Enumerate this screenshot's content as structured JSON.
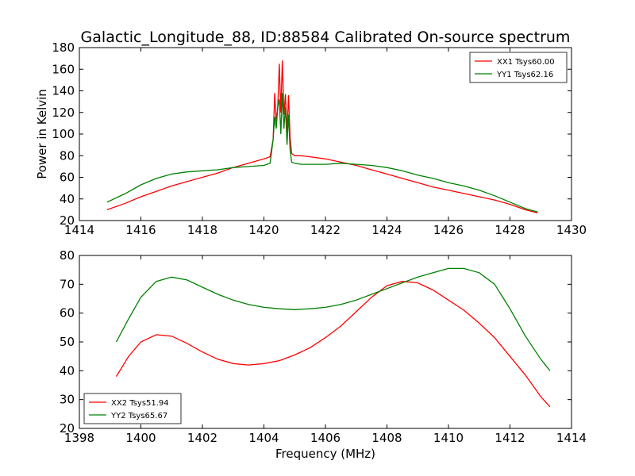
{
  "title": "Galactic_Longitude_88, ID:88584 Calibrated On-source spectrum",
  "chart_data": [
    {
      "type": "line",
      "title": "Galactic_Longitude_88, ID:88584 Calibrated On-source spectrum",
      "xlabel": "",
      "ylabel": "Power in Kelvin",
      "xlim": [
        1414,
        1430
      ],
      "ylim": [
        20,
        180
      ],
      "xticks": [
        1414,
        1416,
        1418,
        1420,
        1422,
        1424,
        1426,
        1428,
        1430
      ],
      "yticks": [
        20,
        40,
        60,
        80,
        100,
        120,
        140,
        160,
        180
      ],
      "grid": false,
      "legend_position": "top-right",
      "series": [
        {
          "name": "XX1 Tsys60.00",
          "color": "#ff0000",
          "x": [
            1414.9,
            1415.5,
            1416.0,
            1416.5,
            1417.0,
            1417.5,
            1418.0,
            1418.5,
            1419.0,
            1419.5,
            1420.0,
            1420.2,
            1420.3,
            1420.35,
            1420.4,
            1420.45,
            1420.5,
            1420.55,
            1420.6,
            1420.65,
            1420.7,
            1420.75,
            1420.8,
            1420.85,
            1420.9,
            1421.0,
            1421.2,
            1421.5,
            1422.0,
            1422.5,
            1423.0,
            1423.5,
            1424.0,
            1424.5,
            1425.0,
            1425.5,
            1426.0,
            1426.5,
            1427.0,
            1427.5,
            1428.0,
            1428.5,
            1428.9
          ],
          "y": [
            30,
            36,
            42,
            47,
            52,
            56,
            60,
            64,
            69,
            73,
            77,
            79,
            95,
            138,
            112,
            125,
            165,
            120,
            168,
            118,
            137,
            102,
            136,
            98,
            82,
            80,
            80,
            79,
            77,
            74,
            71,
            67,
            63,
            59,
            55,
            51,
            48,
            45,
            42,
            39,
            35,
            30,
            27
          ]
        },
        {
          "name": "YY1 Tsys62.16",
          "color": "#008000",
          "x": [
            1414.9,
            1415.5,
            1416.0,
            1416.5,
            1417.0,
            1417.5,
            1418.0,
            1418.5,
            1419.0,
            1419.5,
            1420.0,
            1420.2,
            1420.3,
            1420.35,
            1420.4,
            1420.45,
            1420.5,
            1420.55,
            1420.6,
            1420.65,
            1420.7,
            1420.75,
            1420.8,
            1420.85,
            1420.9,
            1421.0,
            1421.2,
            1421.5,
            1422.0,
            1422.5,
            1423.0,
            1423.5,
            1424.0,
            1424.5,
            1425.0,
            1425.5,
            1426.0,
            1426.5,
            1427.0,
            1427.5,
            1428.0,
            1428.5,
            1428.9
          ],
          "y": [
            37,
            45,
            53,
            59,
            63,
            65,
            66,
            67,
            69,
            70,
            71,
            73,
            95,
            116,
            105,
            125,
            132,
            100,
            138,
            105,
            125,
            90,
            118,
            86,
            74,
            73,
            72,
            72,
            72,
            73,
            72,
            71,
            69,
            66,
            62,
            59,
            55,
            52,
            48,
            43,
            37,
            31,
            28
          ]
        }
      ]
    },
    {
      "type": "line",
      "title": "",
      "xlabel": "Frequency (MHz)",
      "ylabel": "",
      "xlim": [
        1398,
        1414
      ],
      "ylim": [
        20,
        80
      ],
      "xticks": [
        1398,
        1400,
        1402,
        1404,
        1406,
        1408,
        1410,
        1412,
        1414
      ],
      "yticks": [
        20,
        30,
        40,
        50,
        60,
        70,
        80
      ],
      "grid": false,
      "legend_position": "bottom-left",
      "series": [
        {
          "name": "XX2 Tsys51.94",
          "color": "#ff0000",
          "x": [
            1399.2,
            1399.6,
            1400.0,
            1400.5,
            1401.0,
            1401.5,
            1402.0,
            1402.5,
            1403.0,
            1403.5,
            1404.0,
            1404.5,
            1405.0,
            1405.5,
            1406.0,
            1406.5,
            1407.0,
            1407.5,
            1408.0,
            1408.5,
            1409.0,
            1409.5,
            1410.0,
            1410.5,
            1411.0,
            1411.5,
            1412.0,
            1412.5,
            1413.0,
            1413.3
          ],
          "y": [
            38,
            45,
            50,
            52.5,
            52,
            49.5,
            46.5,
            44,
            42.5,
            42,
            42.5,
            43.5,
            45.5,
            48,
            51.5,
            55.5,
            60.5,
            65.5,
            69.5,
            71,
            70.5,
            68,
            64.5,
            61,
            56.5,
            51.5,
            45,
            38.5,
            31,
            27.5
          ]
        },
        {
          "name": "YY2 Tsys65.67",
          "color": "#008000",
          "x": [
            1399.2,
            1399.6,
            1400.0,
            1400.5,
            1401.0,
            1401.5,
            1402.0,
            1402.5,
            1403.0,
            1403.5,
            1404.0,
            1404.5,
            1405.0,
            1405.5,
            1406.0,
            1406.5,
            1407.0,
            1407.5,
            1408.0,
            1408.5,
            1409.0,
            1409.5,
            1410.0,
            1410.5,
            1411.0,
            1411.5,
            1412.0,
            1412.5,
            1413.0,
            1413.3
          ],
          "y": [
            50,
            58,
            65.5,
            71,
            72.5,
            71.5,
            69,
            66.5,
            64.5,
            63,
            62,
            61.5,
            61.2,
            61.5,
            62,
            63,
            64.5,
            66.5,
            68.5,
            70.5,
            72.5,
            74,
            75.5,
            75.5,
            74,
            70,
            61.5,
            52,
            44,
            40
          ]
        }
      ]
    }
  ]
}
